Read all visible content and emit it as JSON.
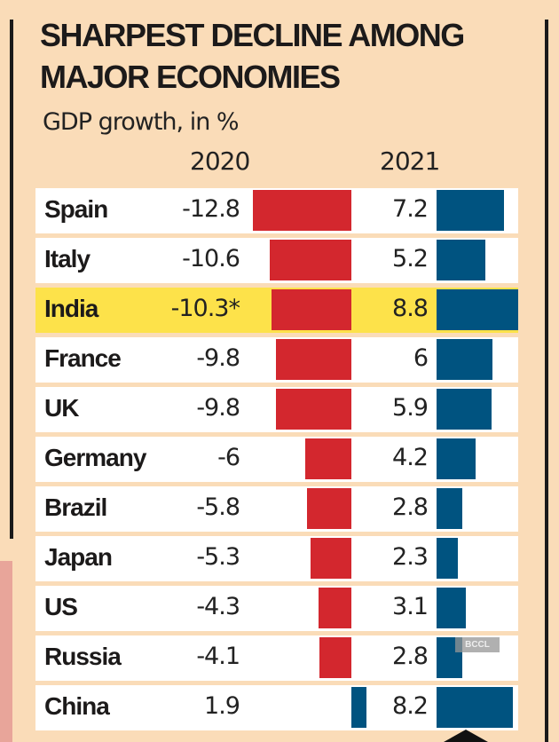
{
  "chart_data": {
    "type": "bar",
    "title": "SHARPEST DECLINE AMONG MAJOR ECONOMIES",
    "subtitle": "GDP growth, in %",
    "categories": [
      "Spain",
      "Italy",
      "India",
      "France",
      "UK",
      "Germany",
      "Brazil",
      "Japan",
      "US",
      "Russia",
      "China"
    ],
    "labels_2020": [
      "-12.8",
      "-10.6",
      "-10.3*",
      "-9.8",
      "-9.8",
      "-6",
      "-5.8",
      "-5.3",
      "-4.3",
      "-4.1",
      "1.9"
    ],
    "series": [
      {
        "name": "2020",
        "values": [
          -12.8,
          -10.6,
          -10.3,
          -9.8,
          -9.8,
          -6,
          -5.8,
          -5.3,
          -4.3,
          -4.1,
          1.9
        ]
      },
      {
        "name": "2021",
        "values": [
          7.2,
          5.2,
          8.8,
          6,
          5.9,
          4.2,
          2.8,
          2.3,
          3.1,
          2.8,
          8.2
        ]
      }
    ],
    "highlight": "India",
    "colors": {
      "negative": "#d3272e",
      "positive": "#005380",
      "highlight": "#fde24a",
      "background": "#fadcb8"
    }
  },
  "watermark": "BCCL"
}
